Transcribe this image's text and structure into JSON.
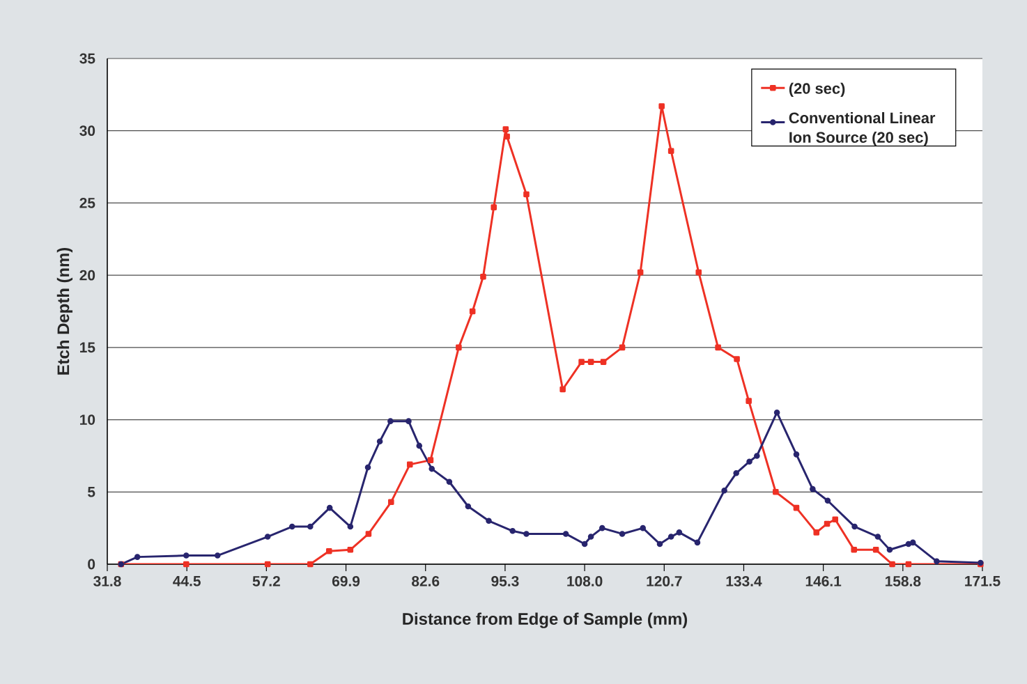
{
  "chart_data": {
    "type": "line",
    "xlabel": "Distance from Edge of Sample (mm)",
    "ylabel": "Etch Depth (nm)",
    "xlim": [
      31.8,
      171.5
    ],
    "xticks": [
      31.8,
      44.5,
      57.2,
      69.9,
      82.6,
      95.3,
      {
        "value": 108.0,
        "label": "108.0"
      },
      120.7,
      133.4,
      146.1,
      158.8,
      171.5
    ],
    "ylim": [
      0,
      35
    ],
    "yticks": [
      0,
      5,
      10,
      15,
      20,
      25,
      30,
      35
    ],
    "grid": "y",
    "legend": "top right",
    "line_style": "solid",
    "series": [
      {
        "name": "(20 sec)",
        "color": "#ee3124",
        "marker": "square",
        "x": [
          34.0,
          44.4,
          57.4,
          64.2,
          67.2,
          70.6,
          73.5,
          77.1,
          80.1,
          83.4,
          87.9,
          90.1,
          91.8,
          93.5,
          95.4,
          95.6,
          98.7,
          104.5,
          107.5,
          109.0,
          111.0,
          114.0,
          116.9,
          120.3,
          121.8,
          126.2,
          129.3,
          132.3,
          134.2,
          138.5,
          141.8,
          145.0,
          146.7,
          148.0,
          151.0,
          154.5,
          157.1,
          159.7,
          171.2
        ],
        "values": [
          0,
          0,
          0,
          0,
          0.9,
          1.0,
          2.1,
          4.3,
          6.9,
          7.2,
          15.0,
          17.5,
          19.9,
          24.7,
          30.1,
          29.6,
          25.6,
          12.1,
          14.0,
          14.0,
          14.0,
          15.0,
          20.2,
          31.7,
          28.6,
          20.2,
          15.0,
          14.2,
          11.3,
          5.0,
          3.9,
          2.2,
          2.8,
          3.1,
          1.0,
          1.0,
          0,
          0,
          0
        ]
      },
      {
        "name": "Conventional Linear Ion Source (20 sec)",
        "color": "#28256e",
        "marker": "circle",
        "x": [
          34.0,
          36.6,
          44.4,
          49.4,
          57.4,
          61.3,
          64.2,
          67.3,
          70.6,
          73.4,
          75.3,
          77.0,
          79.9,
          81.6,
          83.6,
          86.4,
          89.4,
          92.7,
          96.5,
          98.7,
          105.0,
          108.0,
          109.0,
          110.8,
          114.0,
          117.3,
          120.0,
          121.8,
          123.1,
          126.0,
          130.3,
          132.2,
          134.3,
          135.5,
          138.7,
          141.8,
          144.4,
          146.8,
          151.1,
          154.8,
          156.7,
          159.7,
          160.4,
          164.2,
          171.2
        ],
        "values": [
          0,
          0.5,
          0.6,
          0.6,
          1.9,
          2.6,
          2.6,
          3.9,
          2.6,
          6.7,
          8.5,
          9.9,
          9.9,
          8.2,
          6.6,
          5.7,
          4.0,
          3.0,
          2.3,
          2.1,
          2.1,
          1.4,
          1.9,
          2.5,
          2.1,
          2.5,
          1.4,
          1.9,
          2.2,
          1.5,
          5.1,
          6.3,
          7.1,
          7.5,
          10.5,
          7.6,
          5.2,
          4.4,
          2.6,
          1.9,
          1.0,
          1.4,
          1.5,
          0.2,
          0.1
        ]
      }
    ]
  }
}
